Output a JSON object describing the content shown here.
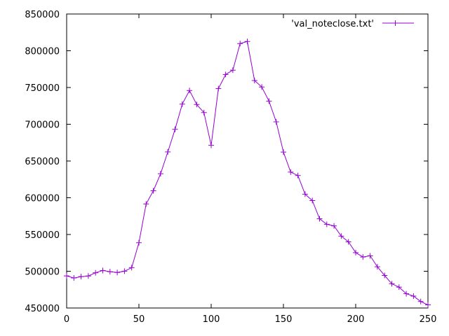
{
  "chart_data": {
    "type": "line",
    "xlim": [
      0,
      250
    ],
    "ylim": [
      450000,
      850000
    ],
    "x_ticks": [
      0,
      50,
      100,
      150,
      200,
      250
    ],
    "y_ticks": [
      450000,
      500000,
      550000,
      600000,
      650000,
      700000,
      750000,
      800000,
      850000
    ],
    "grid": false,
    "legend_position": "top-right",
    "series": [
      {
        "name": "'val_noteclose.txt'",
        "color": "#9400d3",
        "marker": "plus",
        "x": [
          0,
          5,
          10,
          15,
          20,
          25,
          30,
          35,
          40,
          45,
          50,
          55,
          60,
          65,
          70,
          75,
          80,
          85,
          90,
          95,
          100,
          105,
          110,
          115,
          120,
          125,
          130,
          135,
          140,
          145,
          150,
          155,
          160,
          165,
          170,
          175,
          180,
          185,
          190,
          195,
          200,
          205,
          210,
          215,
          220,
          225,
          230,
          235,
          240,
          245,
          250
        ],
        "y": [
          493700,
          490900,
          492700,
          493600,
          497900,
          501000,
          499400,
          498300,
          500100,
          504900,
          538800,
          591600,
          609500,
          632700,
          662400,
          693100,
          727400,
          745900,
          726900,
          715900,
          671300,
          748500,
          767700,
          773600,
          809800,
          812600,
          759500,
          750700,
          731500,
          703300,
          662200,
          634900,
          630300,
          604900,
          596200,
          571400,
          563900,
          561700,
          547800,
          540000,
          525300,
          519400,
          521000,
          506100,
          494300,
          483000,
          478400,
          469400,
          466200,
          458800,
          454300
        ]
      }
    ]
  }
}
